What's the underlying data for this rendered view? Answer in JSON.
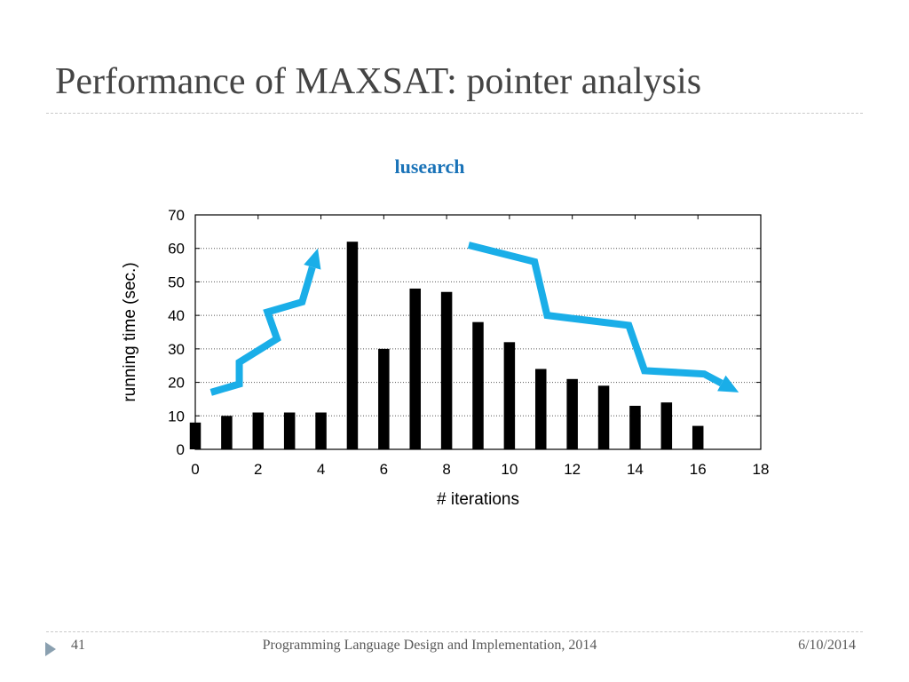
{
  "slide": {
    "title": "Performance of MAXSAT: pointer analysis",
    "number": "41",
    "footer": "Programming Language Design and Implementation, 2014",
    "date": "6/10/2014",
    "accent_color": "#1a73b8",
    "arrow_color": "#1aaee8"
  },
  "chart_data": {
    "type": "bar",
    "title": "lusearch",
    "xlabel": "# iterations",
    "ylabel": "running time (sec.)",
    "x": [
      0,
      1,
      2,
      3,
      4,
      5,
      6,
      7,
      8,
      9,
      10,
      11,
      12,
      13,
      14,
      15,
      16
    ],
    "values": [
      8,
      10,
      11,
      11,
      11,
      62,
      30,
      48,
      47,
      38,
      32,
      24,
      21,
      19,
      13,
      14,
      7
    ],
    "xlim": [
      0,
      18
    ],
    "ylim": [
      0,
      70
    ],
    "xticks": [
      0,
      2,
      4,
      6,
      8,
      10,
      12,
      14,
      16,
      18
    ],
    "yticks": [
      0,
      10,
      20,
      30,
      40,
      50,
      60,
      70
    ],
    "grid": "horizontal dotted",
    "bar_color": "#000000",
    "annotations": [
      {
        "name": "rising-trend-arrow",
        "points": [
          [
            0.5,
            17
          ],
          [
            1.4,
            19.5
          ],
          [
            1.4,
            26
          ],
          [
            2.6,
            33
          ],
          [
            2.3,
            41
          ],
          [
            3.4,
            44
          ],
          [
            3.9,
            60
          ]
        ]
      },
      {
        "name": "falling-trend-arrow",
        "points": [
          [
            8.7,
            61
          ],
          [
            10.8,
            56
          ],
          [
            11.2,
            40
          ],
          [
            13.8,
            37
          ],
          [
            14.3,
            23.5
          ],
          [
            16.2,
            22.5
          ],
          [
            17.3,
            17
          ]
        ]
      }
    ]
  }
}
